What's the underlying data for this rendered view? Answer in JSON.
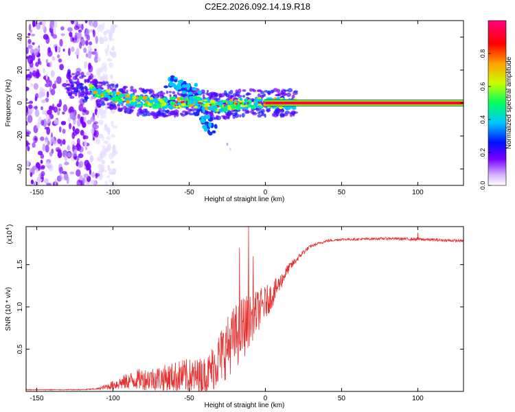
{
  "title": "C2E2.2026.092.14.19.R18",
  "chart_data": [
    {
      "type": "heatmap",
      "name": "spectrogram",
      "xlabel": "Height of straight line (km)",
      "ylabel": "Frequency (Hz)",
      "xlim": [
        -157,
        130
      ],
      "ylim": [
        -50,
        50
      ],
      "xticks": [
        -150,
        -100,
        -50,
        0,
        50,
        100
      ],
      "yticks": [
        -40,
        -20,
        0,
        20,
        40
      ],
      "colorbar": {
        "label": "Normalized spectral amplitude",
        "range": [
          0,
          1
        ],
        "ticks": [
          "0.0",
          "0.2",
          "0.4",
          "0.6",
          "0.8"
        ],
        "colormap": [
          "#ffffff",
          "#7a00ff",
          "#0000ff",
          "#00c8ff",
          "#00ff60",
          "#c8ff00",
          "#ffa000",
          "#ff0000",
          "#ff0080"
        ]
      },
      "features": {
        "noise_region_km": [
          -157,
          -110
        ],
        "signal_ridge": [
          [
            -125,
            12
          ],
          [
            -110,
            6
          ],
          [
            -90,
            2
          ],
          [
            -70,
            -1
          ],
          [
            -50,
            1
          ],
          [
            -30,
            -2
          ],
          [
            -15,
            0
          ],
          [
            0,
            0
          ],
          [
            20,
            0
          ]
        ],
        "constant_line": {
          "freq": 0,
          "from_km": 20,
          "to_km": 130
        },
        "side_branch": [
          [
            -65,
            13
          ],
          [
            -50,
            10
          ],
          [
            -40,
            -10
          ],
          [
            -35,
            -16
          ]
        ]
      }
    },
    {
      "type": "line",
      "name": "snr",
      "xlabel": "Height of straight line (km)",
      "ylabel": "SNR (10 * v/v)",
      "y_scale_label": "(x10",
      "y_scale_exp": "4",
      "xlim": [
        -157,
        130
      ],
      "ylim": [
        0,
        1.95
      ],
      "xticks": [
        -150,
        -100,
        -50,
        0,
        50,
        100
      ],
      "yticks": [
        "0.5",
        "1.0",
        "1.5"
      ],
      "color": "#e83030",
      "envelope": {
        "x": [
          -157,
          -120,
          -110,
          -103,
          -95,
          -85,
          -75,
          -65,
          -55,
          -45,
          -38,
          -33,
          -28,
          -22,
          -15,
          -10,
          -5,
          0,
          5,
          10,
          15,
          20,
          25,
          30,
          40,
          50,
          60,
          80,
          100,
          130
        ],
        "base": [
          0.02,
          0.02,
          0.03,
          0.06,
          0.1,
          0.14,
          0.15,
          0.16,
          0.18,
          0.17,
          0.2,
          0.32,
          0.45,
          0.6,
          0.75,
          0.85,
          0.95,
          1.05,
          1.15,
          1.3,
          1.45,
          1.55,
          1.65,
          1.72,
          1.78,
          1.8,
          1.8,
          1.81,
          1.8,
          1.78
        ],
        "noise": [
          0.005,
          0.005,
          0.01,
          0.04,
          0.08,
          0.12,
          0.14,
          0.16,
          0.2,
          0.22,
          0.22,
          0.3,
          0.35,
          0.38,
          0.4,
          0.3,
          0.25,
          0.2,
          0.15,
          0.1,
          0.06,
          0.04,
          0.03,
          0.02,
          0.015,
          0.015,
          0.015,
          0.015,
          0.02,
          0.015
        ]
      }
    }
  ]
}
